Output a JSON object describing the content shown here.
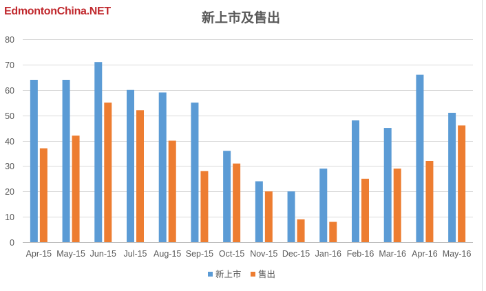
{
  "watermark": "EdmontonChina.NET",
  "chart_data": {
    "type": "bar",
    "title": "新上市及售出",
    "categories": [
      "Apr-15",
      "May-15",
      "Jun-15",
      "Jul-15",
      "Aug-15",
      "Sep-15",
      "Oct-15",
      "Nov-15",
      "Dec-15",
      "Jan-16",
      "Feb-16",
      "Mar-16",
      "Apr-16",
      "May-16"
    ],
    "series": [
      {
        "name": "新上市",
        "color": "#5b9bd5",
        "values": [
          64,
          64,
          71,
          60,
          59,
          55,
          36,
          24,
          20,
          29,
          48,
          45,
          66,
          51
        ]
      },
      {
        "name": "售出",
        "color": "#ed7d31",
        "values": [
          37,
          42,
          55,
          52,
          40,
          28,
          31,
          20,
          9,
          8,
          25,
          29,
          32,
          46
        ]
      }
    ],
    "xlabel": "",
    "ylabel": "",
    "ylim": [
      0,
      80
    ],
    "yticks": [
      "0",
      "10",
      "20",
      "30",
      "40",
      "50",
      "60",
      "70",
      "80"
    ],
    "grid": true,
    "legend_position": "bottom",
    "colors": {
      "gridline": "#d9d9d9",
      "axis": "#bfbfbf",
      "text": "#595959",
      "watermark": "#c0282d"
    }
  }
}
